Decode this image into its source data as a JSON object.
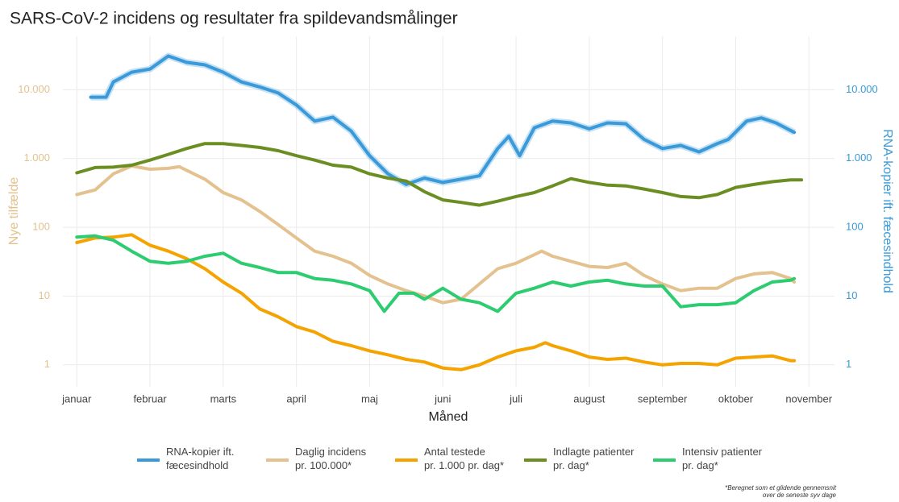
{
  "chart_data": {
    "type": "line",
    "title": "SARS-CoV-2 incidens og resultater fra spildevandsmålinger",
    "x_label": "Måned",
    "y_label": "Nye tilfælde",
    "y2_label": "RNA-kopier ift. fæcesindhold",
    "log_scale": true,
    "grid": true,
    "legend_position": "bottom",
    "xlim": [
      0.81,
      11.35
    ],
    "xticks": [
      {
        "value": 1,
        "label": "januar"
      },
      {
        "value": 2,
        "label": "februar"
      },
      {
        "value": 3,
        "label": "marts"
      },
      {
        "value": 4,
        "label": "april"
      },
      {
        "value": 5,
        "label": "maj"
      },
      {
        "value": 6,
        "label": "juni"
      },
      {
        "value": 7,
        "label": "juli"
      },
      {
        "value": 8,
        "label": "august"
      },
      {
        "value": 9,
        "label": "september"
      },
      {
        "value": 10,
        "label": "oktober"
      },
      {
        "value": 11,
        "label": "november"
      }
    ],
    "ylim": [
      0.48,
      60000
    ],
    "yticks": [
      1,
      10,
      100,
      {
        "value": 1000,
        "label": "1.000"
      },
      {
        "value": 10000,
        "label": "10.000"
      }
    ],
    "y2lim": [
      0.48,
      60000
    ],
    "y2ticks": [
      1,
      10,
      100,
      {
        "value": 1000,
        "label": "1.000"
      },
      {
        "value": 10000,
        "label": "10.000"
      }
    ],
    "series": [
      {
        "name": "RNA-kopier ift.\nfæcesindhold",
        "color": "#3a9ad9",
        "axis": "y2",
        "x": [
          1.19,
          1.4,
          1.5,
          1.75,
          2.0,
          2.25,
          2.5,
          2.75,
          3.0,
          3.25,
          3.5,
          3.75,
          4.0,
          4.25,
          4.5,
          4.75,
          5.0,
          5.25,
          5.5,
          5.75,
          6.0,
          6.25,
          6.5,
          6.75,
          6.9,
          7.05,
          7.25,
          7.5,
          7.75,
          8.0,
          8.25,
          8.5,
          8.75,
          9.0,
          9.25,
          9.5,
          9.75,
          9.9,
          10.15,
          10.35,
          10.55,
          10.8
        ],
        "values": [
          7800,
          7800,
          13000,
          18000,
          20000,
          31000,
          25000,
          23000,
          18000,
          13000,
          11000,
          9000,
          6000,
          3500,
          4000,
          2500,
          1100,
          600,
          420,
          520,
          450,
          500,
          560,
          1400,
          2100,
          1100,
          2800,
          3500,
          3300,
          2700,
          3300,
          3200,
          1900,
          1400,
          1550,
          1250,
          1650,
          1900,
          3500,
          3900,
          3300,
          2400
        ]
      },
      {
        "name": "Daglig incidens\npr. 100.000*",
        "color": "#e3c28f",
        "x": [
          1.0,
          1.25,
          1.5,
          1.75,
          2.0,
          2.25,
          2.4,
          2.75,
          3.0,
          3.25,
          3.5,
          3.75,
          4.0,
          4.25,
          4.5,
          4.75,
          5.0,
          5.25,
          5.5,
          5.75,
          6.0,
          6.25,
          6.5,
          6.75,
          7.0,
          7.25,
          7.35,
          7.5,
          7.75,
          8.0,
          8.25,
          8.5,
          8.75,
          9.0,
          9.25,
          9.5,
          9.75,
          10.0,
          10.25,
          10.5,
          10.75,
          10.8
        ],
        "values": [
          300,
          350,
          600,
          780,
          700,
          720,
          760,
          500,
          320,
          250,
          170,
          110,
          70,
          45,
          38,
          30,
          20,
          15,
          12,
          10,
          8,
          9,
          15,
          25,
          30,
          40,
          45,
          38,
          32,
          27,
          26,
          30,
          20,
          15,
          12,
          13,
          13,
          18,
          21,
          22,
          18,
          16
        ]
      },
      {
        "name": "Antal testede\npr. 1.000 pr. dag*",
        "color": "#f5a300",
        "x": [
          1.0,
          1.25,
          1.5,
          1.75,
          2.0,
          2.25,
          2.5,
          2.75,
          3.0,
          3.25,
          3.5,
          3.75,
          4.0,
          4.25,
          4.5,
          4.75,
          5.0,
          5.25,
          5.5,
          5.75,
          6.0,
          6.25,
          6.5,
          6.75,
          7.0,
          7.25,
          7.4,
          7.5,
          7.75,
          8.0,
          8.25,
          8.5,
          8.75,
          9.0,
          9.25,
          9.5,
          9.75,
          10.0,
          10.25,
          10.5,
          10.75,
          10.8
        ],
        "values": [
          60,
          70,
          72,
          78,
          55,
          45,
          35,
          25,
          16,
          11,
          6.5,
          5,
          3.6,
          3,
          2.2,
          1.9,
          1.6,
          1.4,
          1.2,
          1.1,
          0.9,
          0.85,
          1.0,
          1.3,
          1.6,
          1.8,
          2.1,
          1.9,
          1.6,
          1.3,
          1.2,
          1.25,
          1.1,
          1.0,
          1.05,
          1.05,
          1.0,
          1.25,
          1.3,
          1.35,
          1.15,
          1.15
        ]
      },
      {
        "name": "Indlagte patienter\npr. dag*",
        "color": "#6b8e23",
        "x": [
          1.0,
          1.25,
          1.5,
          1.75,
          2.0,
          2.25,
          2.5,
          2.75,
          3.0,
          3.25,
          3.5,
          3.75,
          4.0,
          4.25,
          4.5,
          4.75,
          5.0,
          5.25,
          5.5,
          5.75,
          6.0,
          6.25,
          6.5,
          6.75,
          7.0,
          7.25,
          7.5,
          7.75,
          8.0,
          8.25,
          8.5,
          8.75,
          9.0,
          9.25,
          9.5,
          9.75,
          10.0,
          10.25,
          10.5,
          10.75,
          10.9
        ],
        "values": [
          620,
          740,
          750,
          800,
          950,
          1150,
          1400,
          1650,
          1650,
          1550,
          1450,
          1300,
          1100,
          950,
          800,
          750,
          600,
          520,
          470,
          330,
          250,
          230,
          210,
          240,
          280,
          320,
          400,
          510,
          450,
          410,
          400,
          360,
          320,
          280,
          270,
          300,
          380,
          420,
          460,
          490,
          490
        ]
      },
      {
        "name": "Intensiv patienter\npr. dag*",
        "color": "#2ecc71",
        "x": [
          1.0,
          1.25,
          1.5,
          1.75,
          2.0,
          2.25,
          2.5,
          2.75,
          3.0,
          3.25,
          3.5,
          3.75,
          4.0,
          4.25,
          4.5,
          4.75,
          5.0,
          5.2,
          5.4,
          5.6,
          5.75,
          6.0,
          6.25,
          6.5,
          6.75,
          7.0,
          7.25,
          7.5,
          7.75,
          8.0,
          8.25,
          8.5,
          8.75,
          9.0,
          9.25,
          9.5,
          9.75,
          10.0,
          10.25,
          10.5,
          10.75,
          10.8
        ],
        "values": [
          72,
          75,
          65,
          45,
          32,
          30,
          32,
          38,
          42,
          30,
          26,
          22,
          22,
          18,
          17,
          15,
          12,
          6,
          11,
          11,
          9,
          13,
          9,
          8,
          6,
          11,
          13,
          16,
          14,
          16,
          17,
          15,
          14,
          14,
          7,
          7.5,
          7.5,
          8,
          12,
          16,
          17,
          18
        ]
      }
    ],
    "footnote": [
      "*Beregnet som et glidende gennemsnit",
      "over de seneste syv dage"
    ]
  }
}
